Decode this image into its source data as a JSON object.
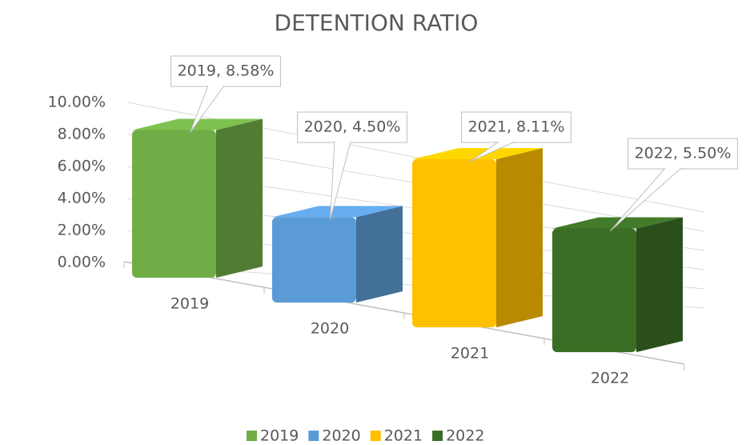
{
  "chart_data": {
    "type": "bar3d",
    "title": "DETENTION RATIO",
    "categories": [
      "2019",
      "2020",
      "2021",
      "2022"
    ],
    "values": [
      8.58,
      4.5,
      8.11,
      5.5
    ],
    "value_labels": [
      "2019, 8.58%",
      "2020, 4.50%",
      "2021, 8.11%",
      "2022, 5.50%"
    ],
    "colors": [
      "#70ad47",
      "#5b9bd5",
      "#ffc000",
      "#3b6e25"
    ],
    "ylim": [
      0,
      10
    ],
    "yticks": [
      {
        "value": 0,
        "label": "0.00%"
      },
      {
        "value": 2,
        "label": "2.00%"
      },
      {
        "value": 4,
        "label": "4.00%"
      },
      {
        "value": 6,
        "label": "6.00%"
      },
      {
        "value": 8,
        "label": "8.00%"
      },
      {
        "value": 10,
        "label": "10.00%"
      }
    ],
    "grid": true,
    "legend": "bottom"
  }
}
